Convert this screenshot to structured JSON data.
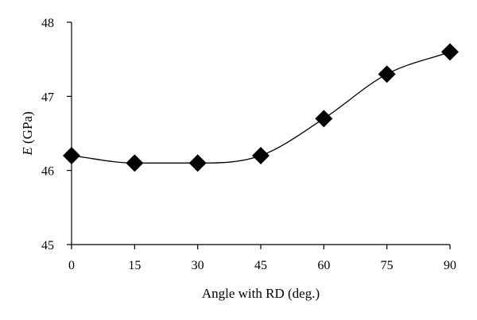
{
  "chart_data": {
    "type": "line",
    "xlabel": "Angle with RD (deg.)",
    "ylabel_italic": "E",
    "ylabel_rest": " (GPa)",
    "x": [
      0,
      15,
      30,
      45,
      60,
      75,
      90
    ],
    "series": [
      {
        "values": [
          46.2,
          46.1,
          46.1,
          46.2,
          46.7,
          47.3,
          47.6
        ]
      }
    ],
    "xlim": [
      0,
      90
    ],
    "ylim": [
      45,
      48
    ],
    "xticks": [
      0,
      15,
      30,
      45,
      60,
      75,
      90
    ],
    "yticks": [
      45,
      46,
      47,
      48
    ],
    "marker": "diamond",
    "line_style": "smooth",
    "grid": false,
    "legend": "none",
    "colors": {
      "line": "#000000",
      "marker": "#000000"
    }
  }
}
